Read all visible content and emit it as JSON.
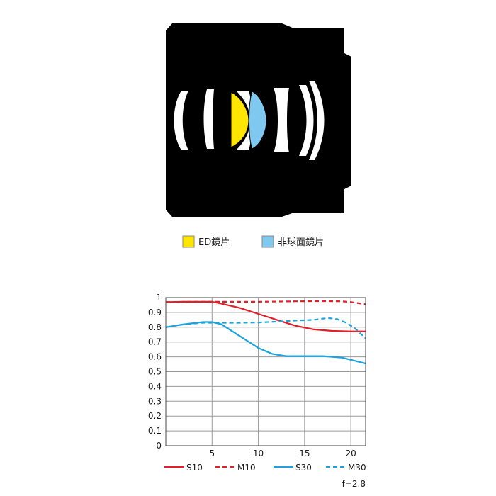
{
  "lens_legend": {
    "items": [
      {
        "label": "ED鏡片",
        "color": "#FFE600"
      },
      {
        "label": "非球面鏡片",
        "color": "#7FC8F0"
      }
    ]
  },
  "chart_data": {
    "type": "line",
    "title": "",
    "xlabel": "",
    "ylabel": "",
    "xlim": [
      0,
      21.6
    ],
    "ylim": [
      0,
      1
    ],
    "xticks": [
      5,
      10,
      15,
      20
    ],
    "yticks": [
      0,
      0.1,
      0.2,
      0.3,
      0.4,
      0.5,
      0.6,
      0.7,
      0.8,
      0.9,
      1
    ],
    "ytick_labels": [
      "0",
      "0.1",
      "0.2",
      "0.3",
      "0.4",
      "0.5",
      "0.6",
      "0.7",
      "0.8",
      "0.9",
      "1"
    ],
    "grid": true,
    "legend_position": "bottom",
    "annotation": "f=2.8",
    "series": [
      {
        "name": "S10",
        "color": "#E0202A",
        "dash": "solid",
        "x": [
          0,
          2,
          5,
          6,
          8,
          10,
          12,
          14,
          16,
          18,
          20,
          21.6
        ],
        "y": [
          0.97,
          0.972,
          0.972,
          0.96,
          0.93,
          0.89,
          0.85,
          0.81,
          0.785,
          0.775,
          0.772,
          0.772
        ]
      },
      {
        "name": "M10",
        "color": "#E0202A",
        "dash": "dashed",
        "x": [
          0,
          3,
          6,
          8,
          10,
          14,
          17,
          19,
          20,
          21.6
        ],
        "y": [
          0.97,
          0.972,
          0.972,
          0.972,
          0.972,
          0.975,
          0.976,
          0.975,
          0.97,
          0.955
        ]
      },
      {
        "name": "S30",
        "color": "#1BA3DD",
        "dash": "solid",
        "x": [
          0,
          2,
          4,
          5,
          6,
          8,
          10,
          11.5,
          13,
          15,
          17,
          19,
          20,
          21.6
        ],
        "y": [
          0.8,
          0.82,
          0.835,
          0.835,
          0.82,
          0.74,
          0.66,
          0.62,
          0.605,
          0.605,
          0.605,
          0.595,
          0.58,
          0.555
        ]
      },
      {
        "name": "M30",
        "color": "#1BA3DD",
        "dash": "dashed",
        "x": [
          0,
          2,
          4,
          6,
          8,
          10,
          12,
          14,
          16,
          17.5,
          18.5,
          19.5,
          20.5,
          21.6
        ],
        "y": [
          0.8,
          0.82,
          0.83,
          0.83,
          0.83,
          0.832,
          0.838,
          0.845,
          0.85,
          0.862,
          0.855,
          0.83,
          0.79,
          0.725
        ]
      }
    ]
  }
}
